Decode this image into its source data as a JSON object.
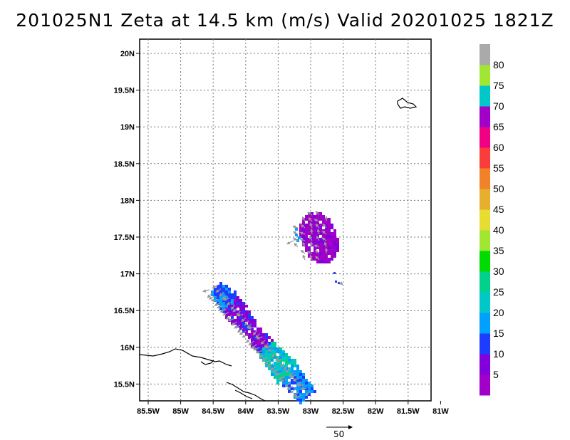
{
  "title": "201025N1  Zeta at 14.5 km (m/s) Valid 20201025  1821Z",
  "map": {
    "lon_range": [
      -85.5,
      -81
    ],
    "lat_range": [
      15.3,
      20.2
    ],
    "lon_ticks": [
      "85.5W",
      "85W",
      "84.5W",
      "84W",
      "83.5W",
      "83W",
      "82.5W",
      "82W",
      "81.5W",
      "81W"
    ],
    "lat_ticks": [
      "20N",
      "19.5N",
      "19N",
      "18.5N",
      "18N",
      "17.5N",
      "17N",
      "16.5N",
      "16N",
      "15.5N"
    ],
    "grid": true
  },
  "colorbar": {
    "labels": [
      "5",
      "10",
      "15",
      "20",
      "25",
      "30",
      "35",
      "40",
      "45",
      "50",
      "55",
      "60",
      "65",
      "70",
      "75",
      "80"
    ],
    "colors": [
      "#a000c8",
      "#8200dc",
      "#1e3cff",
      "#00a0ff",
      "#00c8c8",
      "#00d28c",
      "#00dc00",
      "#a0e632",
      "#e6dc32",
      "#e6af2d",
      "#f08228",
      "#fa3c3c",
      "#f00082",
      "#a000c8",
      "#00c8c8",
      "#a0e632",
      "#aaaaaa"
    ]
  },
  "reference_vector": {
    "label": "50"
  },
  "icons": {
    "vector_arrow": "arrow-right-icon"
  }
}
